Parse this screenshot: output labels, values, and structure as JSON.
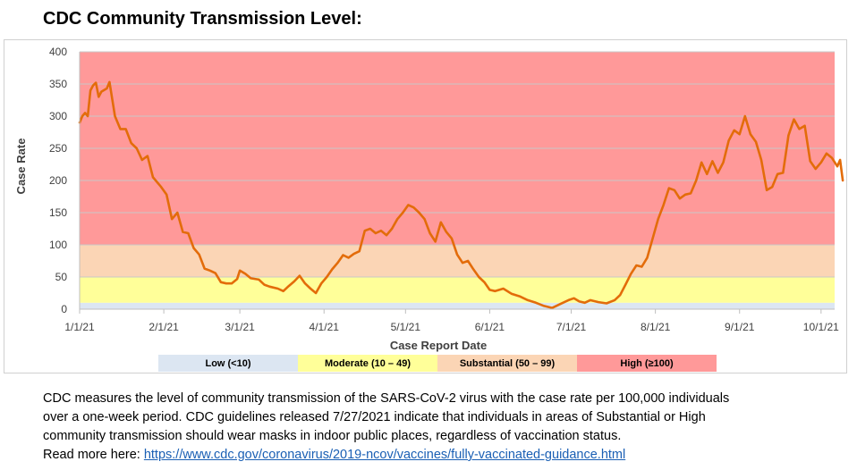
{
  "page": {
    "title": "CDC Community Transmission Level:",
    "description_lines": [
      "CDC measures the level of community transmission of the SARS-CoV-2 virus with the case rate per 100,000 individuals",
      "over a one-week period. CDC guidelines released 7/27/2021 indicate that individuals in areas of Substantial or High",
      "community transmission should wear masks in indoor public places, regardless of vaccination status."
    ],
    "read_more_prefix": "Read more here: ",
    "read_more_link": "https://www.cdc.gov/coronavirus/2019-ncov/vaccines/fully-vaccinated-guidance.html"
  },
  "chart_data": {
    "type": "line",
    "title": "",
    "xlabel": "Case Report Date",
    "ylabel": "Case Rate",
    "ylim": [
      0,
      400
    ],
    "yticks": [
      0,
      50,
      100,
      150,
      200,
      250,
      300,
      350,
      400
    ],
    "xlim": [
      "2021-01-01",
      "2021-10-06"
    ],
    "xticks": [
      {
        "date": "2021-01-01",
        "label": "1/1/21"
      },
      {
        "date": "2021-02-01",
        "label": "2/1/21"
      },
      {
        "date": "2021-03-01",
        "label": "3/1/21"
      },
      {
        "date": "2021-04-01",
        "label": "4/1/21"
      },
      {
        "date": "2021-05-01",
        "label": "5/1/21"
      },
      {
        "date": "2021-06-01",
        "label": "6/1/21"
      },
      {
        "date": "2021-07-01",
        "label": "7/1/21"
      },
      {
        "date": "2021-08-01",
        "label": "8/1/21"
      },
      {
        "date": "2021-09-01",
        "label": "9/1/21"
      },
      {
        "date": "2021-10-01",
        "label": "10/1/21"
      }
    ],
    "bands": [
      {
        "label": "Low (<10)",
        "from": 0,
        "to": 10,
        "color": "#dce6f2"
      },
      {
        "label": "Moderate (10 – 49)",
        "from": 10,
        "to": 50,
        "color": "#ffff99"
      },
      {
        "label": "Substantial (50 – 99)",
        "from": 50,
        "to": 100,
        "color": "#fbd5b5"
      },
      {
        "label": "High (≥100)",
        "from": 100,
        "to": 400,
        "color": "#ff9999"
      }
    ],
    "legend_position": "bottom",
    "line_color": "#e36c0a",
    "series": [
      {
        "values": [
          {
            "x": "2021-01-01",
            "y": 290
          },
          {
            "x": "2021-01-02",
            "y": 300
          },
          {
            "x": "2021-01-03",
            "y": 305
          },
          {
            "x": "2021-01-04",
            "y": 300
          },
          {
            "x": "2021-01-05",
            "y": 340
          },
          {
            "x": "2021-01-06",
            "y": 348
          },
          {
            "x": "2021-01-07",
            "y": 352
          },
          {
            "x": "2021-01-08",
            "y": 330
          },
          {
            "x": "2021-01-09",
            "y": 338
          },
          {
            "x": "2021-01-11",
            "y": 343
          },
          {
            "x": "2021-01-12",
            "y": 353
          },
          {
            "x": "2021-01-14",
            "y": 300
          },
          {
            "x": "2021-01-16",
            "y": 280
          },
          {
            "x": "2021-01-18",
            "y": 280
          },
          {
            "x": "2021-01-20",
            "y": 258
          },
          {
            "x": "2021-01-22",
            "y": 250
          },
          {
            "x": "2021-01-24",
            "y": 232
          },
          {
            "x": "2021-01-26",
            "y": 238
          },
          {
            "x": "2021-01-28",
            "y": 205
          },
          {
            "x": "2021-01-31",
            "y": 190
          },
          {
            "x": "2021-02-02",
            "y": 178
          },
          {
            "x": "2021-02-04",
            "y": 140
          },
          {
            "x": "2021-02-06",
            "y": 150
          },
          {
            "x": "2021-02-08",
            "y": 120
          },
          {
            "x": "2021-02-10",
            "y": 118
          },
          {
            "x": "2021-02-12",
            "y": 95
          },
          {
            "x": "2021-02-14",
            "y": 85
          },
          {
            "x": "2021-02-16",
            "y": 63
          },
          {
            "x": "2021-02-18",
            "y": 60
          },
          {
            "x": "2021-02-20",
            "y": 56
          },
          {
            "x": "2021-02-22",
            "y": 42
          },
          {
            "x": "2021-02-24",
            "y": 40
          },
          {
            "x": "2021-02-26",
            "y": 40
          },
          {
            "x": "2021-02-28",
            "y": 47
          },
          {
            "x": "2021-03-01",
            "y": 60
          },
          {
            "x": "2021-03-03",
            "y": 55
          },
          {
            "x": "2021-03-05",
            "y": 48
          },
          {
            "x": "2021-03-08",
            "y": 46
          },
          {
            "x": "2021-03-10",
            "y": 38
          },
          {
            "x": "2021-03-12",
            "y": 35
          },
          {
            "x": "2021-03-15",
            "y": 32
          },
          {
            "x": "2021-03-17",
            "y": 28
          },
          {
            "x": "2021-03-19",
            "y": 36
          },
          {
            "x": "2021-03-21",
            "y": 43
          },
          {
            "x": "2021-03-23",
            "y": 52
          },
          {
            "x": "2021-03-25",
            "y": 40
          },
          {
            "x": "2021-03-27",
            "y": 32
          },
          {
            "x": "2021-03-29",
            "y": 25
          },
          {
            "x": "2021-03-31",
            "y": 40
          },
          {
            "x": "2021-04-02",
            "y": 50
          },
          {
            "x": "2021-04-04",
            "y": 62
          },
          {
            "x": "2021-04-06",
            "y": 72
          },
          {
            "x": "2021-04-08",
            "y": 84
          },
          {
            "x": "2021-04-10",
            "y": 80
          },
          {
            "x": "2021-04-12",
            "y": 86
          },
          {
            "x": "2021-04-14",
            "y": 90
          },
          {
            "x": "2021-04-16",
            "y": 122
          },
          {
            "x": "2021-04-18",
            "y": 125
          },
          {
            "x": "2021-04-20",
            "y": 118
          },
          {
            "x": "2021-04-22",
            "y": 122
          },
          {
            "x": "2021-04-24",
            "y": 115
          },
          {
            "x": "2021-04-26",
            "y": 125
          },
          {
            "x": "2021-04-28",
            "y": 140
          },
          {
            "x": "2021-04-30",
            "y": 150
          },
          {
            "x": "2021-05-02",
            "y": 162
          },
          {
            "x": "2021-05-04",
            "y": 158
          },
          {
            "x": "2021-05-06",
            "y": 150
          },
          {
            "x": "2021-05-08",
            "y": 140
          },
          {
            "x": "2021-05-10",
            "y": 118
          },
          {
            "x": "2021-05-12",
            "y": 105
          },
          {
            "x": "2021-05-14",
            "y": 135
          },
          {
            "x": "2021-05-16",
            "y": 120
          },
          {
            "x": "2021-05-18",
            "y": 110
          },
          {
            "x": "2021-05-20",
            "y": 85
          },
          {
            "x": "2021-05-22",
            "y": 72
          },
          {
            "x": "2021-05-24",
            "y": 75
          },
          {
            "x": "2021-05-26",
            "y": 62
          },
          {
            "x": "2021-05-28",
            "y": 50
          },
          {
            "x": "2021-05-30",
            "y": 42
          },
          {
            "x": "2021-06-01",
            "y": 30
          },
          {
            "x": "2021-06-03",
            "y": 28
          },
          {
            "x": "2021-06-06",
            "y": 32
          },
          {
            "x": "2021-06-09",
            "y": 24
          },
          {
            "x": "2021-06-12",
            "y": 20
          },
          {
            "x": "2021-06-15",
            "y": 14
          },
          {
            "x": "2021-06-18",
            "y": 10
          },
          {
            "x": "2021-06-21",
            "y": 5
          },
          {
            "x": "2021-06-24",
            "y": 2
          },
          {
            "x": "2021-06-27",
            "y": 8
          },
          {
            "x": "2021-06-30",
            "y": 14
          },
          {
            "x": "2021-07-02",
            "y": 17
          },
          {
            "x": "2021-07-04",
            "y": 12
          },
          {
            "x": "2021-07-06",
            "y": 10
          },
          {
            "x": "2021-07-08",
            "y": 14
          },
          {
            "x": "2021-07-11",
            "y": 11
          },
          {
            "x": "2021-07-14",
            "y": 9
          },
          {
            "x": "2021-07-17",
            "y": 14
          },
          {
            "x": "2021-07-19",
            "y": 22
          },
          {
            "x": "2021-07-21",
            "y": 38
          },
          {
            "x": "2021-07-23",
            "y": 55
          },
          {
            "x": "2021-07-25",
            "y": 68
          },
          {
            "x": "2021-07-27",
            "y": 66
          },
          {
            "x": "2021-07-29",
            "y": 80
          },
          {
            "x": "2021-07-31",
            "y": 110
          },
          {
            "x": "2021-08-02",
            "y": 140
          },
          {
            "x": "2021-08-04",
            "y": 162
          },
          {
            "x": "2021-08-06",
            "y": 188
          },
          {
            "x": "2021-08-08",
            "y": 185
          },
          {
            "x": "2021-08-10",
            "y": 172
          },
          {
            "x": "2021-08-12",
            "y": 178
          },
          {
            "x": "2021-08-14",
            "y": 180
          },
          {
            "x": "2021-08-16",
            "y": 200
          },
          {
            "x": "2021-08-18",
            "y": 228
          },
          {
            "x": "2021-08-20",
            "y": 210
          },
          {
            "x": "2021-08-22",
            "y": 230
          },
          {
            "x": "2021-08-24",
            "y": 212
          },
          {
            "x": "2021-08-26",
            "y": 228
          },
          {
            "x": "2021-08-28",
            "y": 262
          },
          {
            "x": "2021-08-30",
            "y": 278
          },
          {
            "x": "2021-09-01",
            "y": 272
          },
          {
            "x": "2021-09-03",
            "y": 300
          },
          {
            "x": "2021-09-05",
            "y": 272
          },
          {
            "x": "2021-09-07",
            "y": 260
          },
          {
            "x": "2021-09-09",
            "y": 232
          },
          {
            "x": "2021-09-11",
            "y": 185
          },
          {
            "x": "2021-09-13",
            "y": 190
          },
          {
            "x": "2021-09-15",
            "y": 210
          },
          {
            "x": "2021-09-17",
            "y": 212
          },
          {
            "x": "2021-09-19",
            "y": 270
          },
          {
            "x": "2021-09-21",
            "y": 295
          },
          {
            "x": "2021-09-23",
            "y": 280
          },
          {
            "x": "2021-09-25",
            "y": 285
          },
          {
            "x": "2021-09-27",
            "y": 230
          },
          {
            "x": "2021-09-29",
            "y": 218
          },
          {
            "x": "2021-10-01",
            "y": 228
          },
          {
            "x": "2021-10-03",
            "y": 242
          },
          {
            "x": "2021-10-05",
            "y": 235
          },
          {
            "x": "2021-10-07",
            "y": 222
          },
          {
            "x": "2021-10-08",
            "y": 232
          },
          {
            "x": "2021-10-09",
            "y": 200
          }
        ]
      }
    ]
  }
}
